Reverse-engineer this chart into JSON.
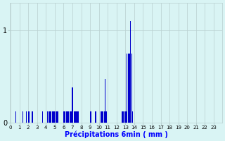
{
  "xlabel": "Précipitations 6min ( mm )",
  "background_color": "#d9f4f4",
  "bar_color": "#0000cc",
  "grid_color": "#b8d0d0",
  "ylim": [
    0,
    1.3
  ],
  "xlim": [
    -0.5,
    239.5
  ],
  "bar_values": [
    0.0,
    0.0,
    0.0,
    0.0,
    0.0,
    0.0,
    0.12,
    0.0,
    0.0,
    0.0,
    0.0,
    0.0,
    0.0,
    0.0,
    0.12,
    0.0,
    0.0,
    0.0,
    0.12,
    0.0,
    0.12,
    0.12,
    0.0,
    0.0,
    0.12,
    0.12,
    0.0,
    0.0,
    0.0,
    0.0,
    0.0,
    0.0,
    0.0,
    0.0,
    0.0,
    0.0,
    0.12,
    0.0,
    0.0,
    0.0,
    0.0,
    0.0,
    0.12,
    0.12,
    0.12,
    0.12,
    0.12,
    0.12,
    0.12,
    0.12,
    0.12,
    0.12,
    0.12,
    0.12,
    0.12,
    0.0,
    0.0,
    0.0,
    0.0,
    0.0,
    0.12,
    0.12,
    0.12,
    0.12,
    0.12,
    0.12,
    0.12,
    0.12,
    0.12,
    0.12,
    0.38,
    0.0,
    0.12,
    0.12,
    0.12,
    0.12,
    0.12,
    0.12,
    0.0,
    0.0,
    0.0,
    0.0,
    0.0,
    0.0,
    0.0,
    0.0,
    0.0,
    0.0,
    0.0,
    0.0,
    0.12,
    0.12,
    0.0,
    0.0,
    0.0,
    0.0,
    0.12,
    0.12,
    0.0,
    0.0,
    0.0,
    0.0,
    0.12,
    0.12,
    0.12,
    0.12,
    0.12,
    0.47,
    0.12,
    0.12,
    0.0,
    0.0,
    0.0,
    0.0,
    0.0,
    0.0,
    0.0,
    0.0,
    0.0,
    0.0,
    0.0,
    0.0,
    0.0,
    0.0,
    0.0,
    0.0,
    0.12,
    0.12,
    0.12,
    0.12,
    0.12,
    0.12,
    0.75,
    0.75,
    0.75,
    0.75,
    1.1,
    0.75,
    0.12,
    0.0,
    0.0,
    0.0,
    0.0,
    0.0
  ],
  "xtick_positions": [
    0,
    10,
    20,
    30,
    40,
    50,
    60,
    70,
    80,
    90,
    100,
    110,
    120,
    130,
    140,
    150,
    160,
    170,
    180,
    190,
    200,
    210,
    220,
    230
  ],
  "xtick_labels": [
    "0",
    "1",
    "2",
    "3",
    "4",
    "5",
    "6",
    "7",
    "8",
    "9",
    "10",
    "11",
    "12",
    "13",
    "14",
    "15",
    "16",
    "17",
    "18",
    "19",
    "20",
    "21",
    "22",
    "23"
  ]
}
